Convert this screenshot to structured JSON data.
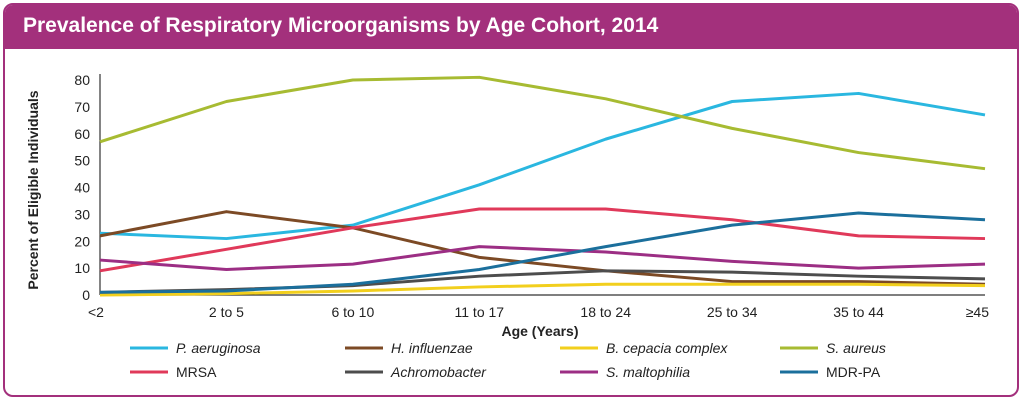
{
  "chart_data": {
    "type": "line",
    "title": "Prevalence of Respiratory Microorganisms by Age Cohort, 2014",
    "xlabel": "Age (Years)",
    "ylabel": "Percent of Eligible Individuals",
    "ylim": [
      0,
      80
    ],
    "yticks": [
      "0",
      "10",
      "20",
      "30",
      "40",
      "50",
      "60",
      "70",
      "80"
    ],
    "categories": [
      "<2",
      "2 to 5",
      "6 to 10",
      "11 to 17",
      "18 to 24",
      "25 to 34",
      "35 to 44",
      "≥45"
    ],
    "grid": false,
    "legend": "bottom",
    "series": [
      {
        "name": "P. aeruginosa",
        "italic": true,
        "color": "#2ab7e0",
        "values": [
          23,
          21,
          26,
          41,
          58,
          72,
          75,
          67
        ]
      },
      {
        "name": "H. influenzae",
        "italic": true,
        "color": "#7c4a25",
        "values": [
          22,
          31,
          25,
          14,
          9,
          5,
          5,
          4
        ]
      },
      {
        "name": "B. cepacia complex",
        "italic": true,
        "color": "#f2cf1d",
        "values": [
          0,
          0.5,
          1.5,
          3,
          4,
          4,
          4,
          3.5
        ]
      },
      {
        "name": "S. aureus",
        "italic": true,
        "color": "#a7bb32",
        "values": [
          57,
          72,
          80,
          81,
          73,
          62,
          53,
          47
        ]
      },
      {
        "name": "MRSA",
        "italic": false,
        "color": "#e0395a",
        "values": [
          9,
          17,
          25,
          32,
          32,
          28,
          22,
          21
        ]
      },
      {
        "name": "Achromobacter",
        "italic": true,
        "color": "#4d4d4d",
        "values": [
          1,
          2,
          3.5,
          7,
          9,
          8.5,
          7,
          6
        ]
      },
      {
        "name": "S. maltophilia",
        "italic": true,
        "color": "#9c2e84",
        "values": [
          13,
          9.5,
          11.5,
          18,
          16,
          12.5,
          10,
          11.5
        ]
      },
      {
        "name": "MDR-PA",
        "italic": false,
        "color": "#1b6f9c",
        "values": [
          1,
          1.5,
          4,
          9.5,
          18,
          26,
          30.5,
          28
        ]
      }
    ]
  },
  "colors": {
    "frame": "#a3307c",
    "title_text": "#ffffff"
  }
}
